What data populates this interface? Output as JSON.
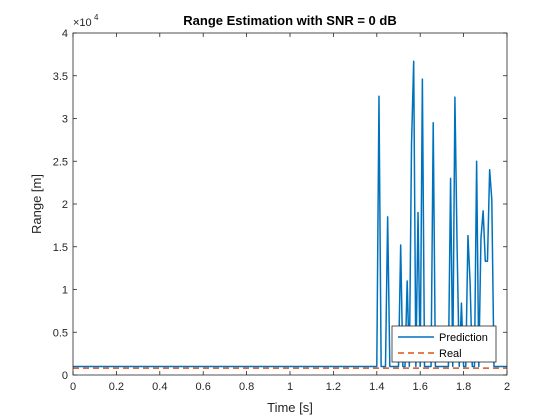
{
  "chart_data": {
    "type": "line",
    "title": "Range Estimation with SNR = 0 dB",
    "xlabel": "Time [s]",
    "ylabel": "Range [m]",
    "xlim": [
      0,
      2
    ],
    "ylim": [
      0,
      40000
    ],
    "x_ticks": [
      0,
      0.2,
      0.4,
      0.6,
      0.8,
      1,
      1.2,
      1.4,
      1.6,
      1.8,
      2
    ],
    "x_tick_labels": [
      "0",
      "0.2",
      "0.4",
      "0.6",
      "0.8",
      "1",
      "1.2",
      "1.4",
      "1.6",
      "1.8",
      "2"
    ],
    "y_ticks": [
      0,
      5000,
      10000,
      15000,
      20000,
      25000,
      30000,
      35000,
      40000
    ],
    "y_tick_labels": [
      "0",
      "0.5",
      "1",
      "1.5",
      "2",
      "2.5",
      "3",
      "3.5",
      "4"
    ],
    "y_exponent_base": "×10",
    "y_exponent_power": "4",
    "grid": false,
    "legend_position": "bottom-right",
    "series": [
      {
        "name": "Prediction",
        "color": "#0072BD",
        "style": "solid",
        "x": [
          0,
          1.39,
          1.4,
          1.41,
          1.42,
          1.43,
          1.44,
          1.45,
          1.46,
          1.47,
          1.48,
          1.49,
          1.5,
          1.51,
          1.52,
          1.53,
          1.54,
          1.55,
          1.56,
          1.57,
          1.58,
          1.59,
          1.6,
          1.61,
          1.62,
          1.63,
          1.64,
          1.65,
          1.66,
          1.67,
          1.68,
          1.69,
          1.7,
          1.71,
          1.72,
          1.73,
          1.74,
          1.75,
          1.76,
          1.77,
          1.78,
          1.79,
          1.8,
          1.81,
          1.82,
          1.83,
          1.84,
          1.85,
          1.86,
          1.87,
          1.88,
          1.89,
          1.9,
          1.91,
          1.92,
          1.93,
          1.94,
          1.95,
          1.96,
          1.97,
          1.98,
          1.99,
          2.0
        ],
        "y": [
          1000,
          1000,
          1000,
          32600,
          1000,
          1000,
          1000,
          18500,
          1000,
          1000,
          1000,
          1000,
          1000,
          15200,
          1000,
          1000,
          11000,
          1000,
          27000,
          36700,
          1000,
          19000,
          1000,
          34600,
          1000,
          1000,
          1000,
          1000,
          29500,
          1000,
          1000,
          1000,
          1000,
          1000,
          1000,
          1000,
          23000,
          1000,
          32500,
          15000,
          1000,
          8400,
          1000,
          1000,
          16300,
          10800,
          1000,
          1000,
          25000,
          1000,
          16000,
          19200,
          13300,
          13300,
          24000,
          20500,
          1000,
          1000,
          1000,
          1000,
          1000,
          1000,
          1000
        ]
      },
      {
        "name": "Real",
        "color": "#D95319",
        "style": "dashed",
        "x": [
          0,
          2
        ],
        "y": [
          800,
          800
        ]
      }
    ]
  }
}
